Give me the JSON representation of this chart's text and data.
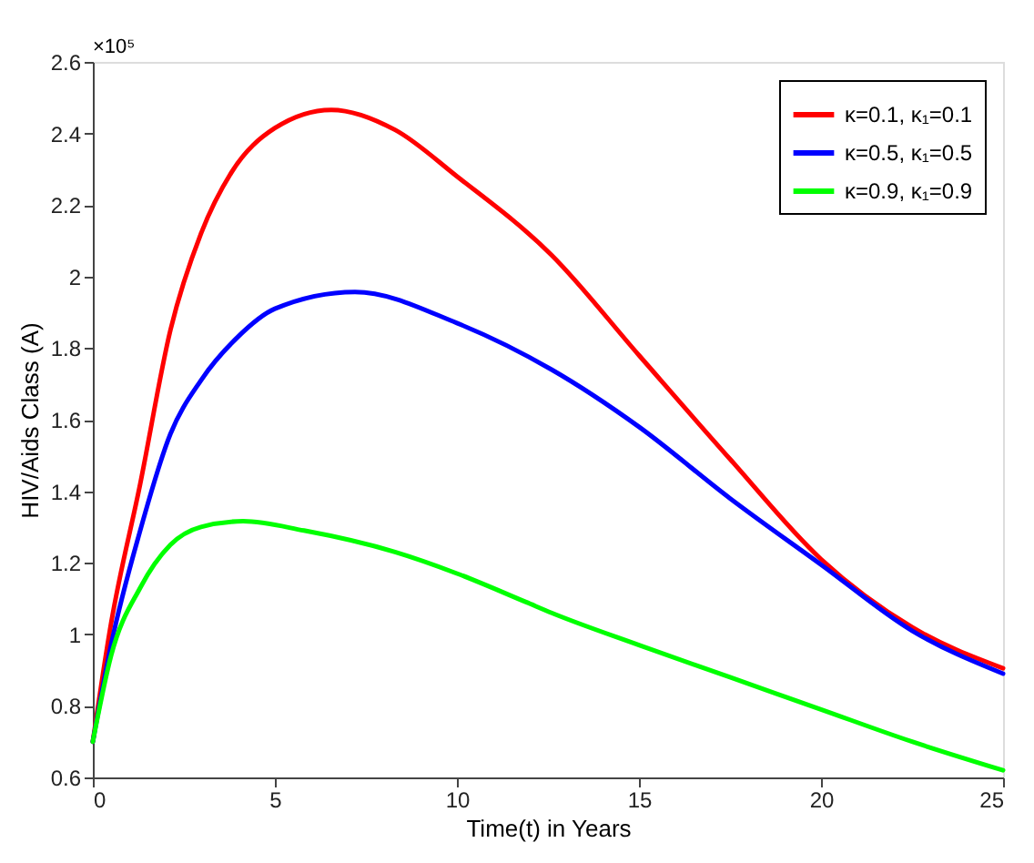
{
  "chart_data": {
    "type": "line",
    "xlabel": "Time(t) in Years",
    "ylabel": "HIV/Aids Class (A)",
    "annotations": [
      "×10⁵"
    ],
    "xlim": [
      0,
      25
    ],
    "xticks": [
      0,
      5,
      10,
      15,
      20,
      25
    ],
    "ylim": [
      0.6,
      2.6
    ],
    "yticks": [
      0.6,
      0.8,
      1,
      1.2,
      1.4,
      1.6,
      1.8,
      2,
      2.2,
      2.4,
      2.6
    ],
    "grid": false,
    "legend": "top right",
    "marker": "none",
    "line_style": "solid",
    "series": [
      {
        "name": "κ=0.1, κ₁=0.1",
        "color": "#ff0000",
        "x": [
          0,
          0.5,
          1.3,
          2.13,
          2.97,
          3.8,
          5,
          6.55,
          8.3,
          10,
          12.6,
          15,
          17.5,
          20,
          22.5,
          25
        ],
        "values": [
          0.7,
          1.03,
          1.42,
          1.85,
          2.12,
          2.29,
          2.415,
          2.466,
          2.41,
          2.28,
          2.06,
          1.78,
          1.49,
          1.21,
          1.02,
          0.905
        ]
      },
      {
        "name": "κ=0.5, κ₁=0.5",
        "color": "#0000ff",
        "x": [
          0,
          0.5,
          1.3,
          2.13,
          2.97,
          3.97,
          5,
          7.2,
          10,
          12.6,
          15,
          17.5,
          20,
          22.5,
          25
        ],
        "values": [
          0.7,
          0.97,
          1.29,
          1.56,
          1.71,
          1.83,
          1.91,
          1.957,
          1.87,
          1.74,
          1.58,
          1.38,
          1.195,
          1.01,
          0.89
        ]
      },
      {
        "name": "κ=0.9, κ₁=0.9",
        "color": "#00ff00",
        "x": [
          0,
          0.5,
          1.3,
          2.13,
          2.97,
          4.13,
          5.8,
          8.3,
          10,
          11.9,
          12.6,
          15,
          17.5,
          20,
          22.5,
          25
        ],
        "values": [
          0.7,
          0.94,
          1.13,
          1.25,
          1.3,
          1.316,
          1.29,
          1.23,
          1.17,
          1.09,
          1.06,
          0.97,
          0.88,
          0.79,
          0.7,
          0.62
        ]
      }
    ]
  }
}
